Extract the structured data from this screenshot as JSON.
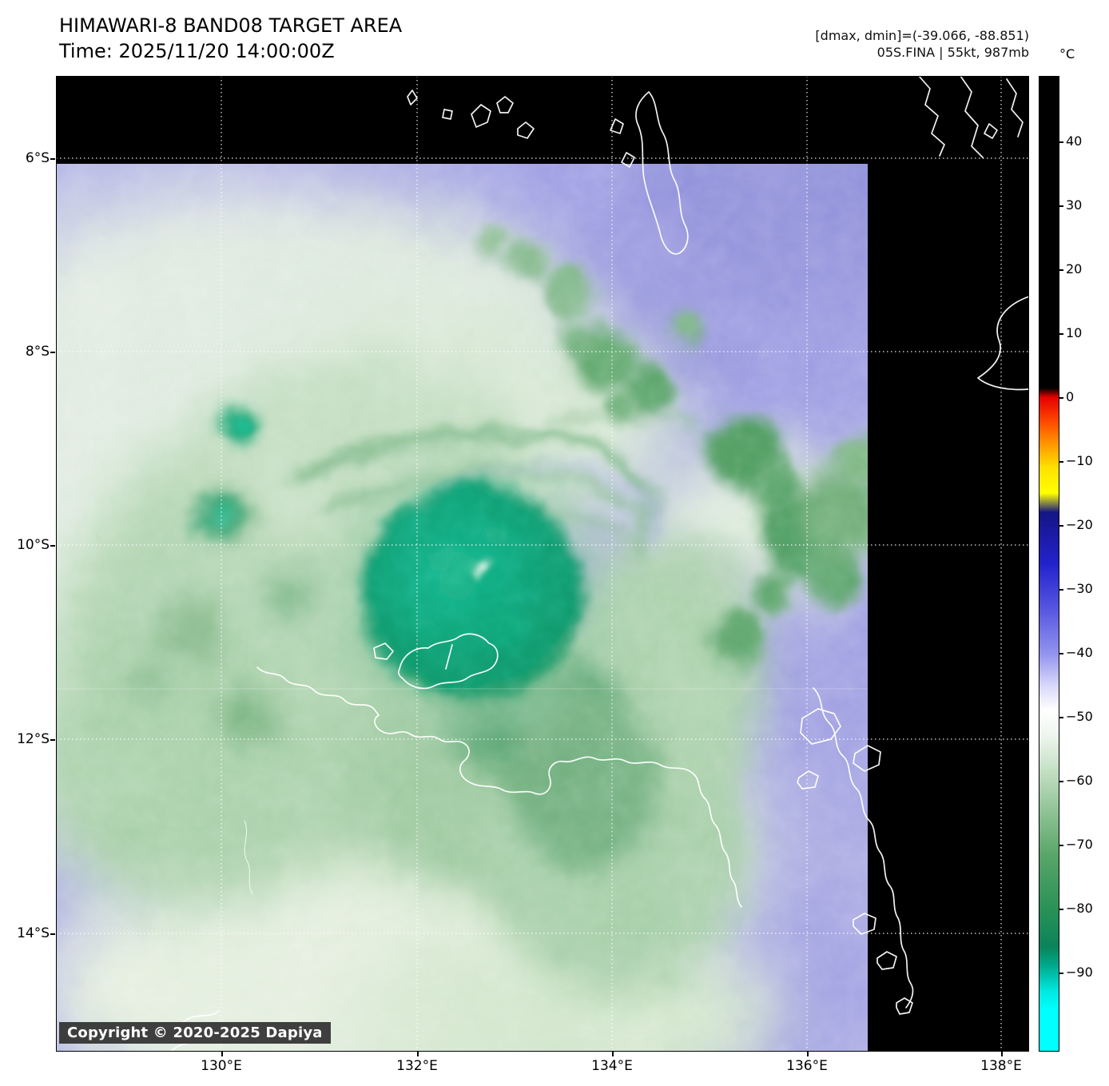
{
  "header": {
    "title": "HIMAWARI-8 BAND08 TARGET AREA",
    "time": "Time: 2025/11/20 14:00:00Z",
    "annotations": {
      "dmax_dmin": "[dmax, dmin]=(-39.066, -88.851)",
      "storm": "05S.FINA | 55kt, 987mb"
    }
  },
  "map": {
    "copyright": "Copyright © 2020-2025 Dapiya",
    "x_axis": {
      "tick_labels": [
        "130°E",
        "132°E",
        "134°E",
        "136°E",
        "138°E"
      ]
    },
    "y_axis": {
      "tick_labels": [
        "6°S",
        "8°S",
        "10°S",
        "12°S",
        "14°S"
      ]
    }
  },
  "colorbar": {
    "unit": "°C",
    "tick_values": [
      40,
      30,
      20,
      10,
      0,
      -10,
      -20,
      -30,
      -40,
      -50,
      -60,
      -70,
      -80,
      -90
    ],
    "gradient_stops": [
      {
        "t": 50,
        "color": "#000000"
      },
      {
        "t": 1.5,
        "color": "#000000"
      },
      {
        "t": 0,
        "color": "#e60000"
      },
      {
        "t": -4,
        "color": "#ff4d00"
      },
      {
        "t": -7,
        "color": "#ff9000"
      },
      {
        "t": -11,
        "color": "#ffe100"
      },
      {
        "t": -15,
        "color": "#ffff00"
      },
      {
        "t": -18,
        "color": "#151585"
      },
      {
        "t": -26,
        "color": "#2222cc"
      },
      {
        "t": -33,
        "color": "#5555e0"
      },
      {
        "t": -40,
        "color": "#9191ef"
      },
      {
        "t": -45,
        "color": "#d6d6fa"
      },
      {
        "t": -49,
        "color": "#ffffff"
      },
      {
        "t": -53,
        "color": "#eef5ee"
      },
      {
        "t": -58,
        "color": "#c7e2c7"
      },
      {
        "t": -65,
        "color": "#8fc295"
      },
      {
        "t": -72,
        "color": "#57a468"
      },
      {
        "t": -80,
        "color": "#2b9257"
      },
      {
        "t": -86,
        "color": "#0c835a"
      },
      {
        "t": -89,
        "color": "#00a98c"
      },
      {
        "t": -93,
        "color": "#00e8e0"
      },
      {
        "t": -96,
        "color": "#00ffff"
      },
      {
        "t": -102,
        "color": "#00ffff"
      }
    ]
  }
}
